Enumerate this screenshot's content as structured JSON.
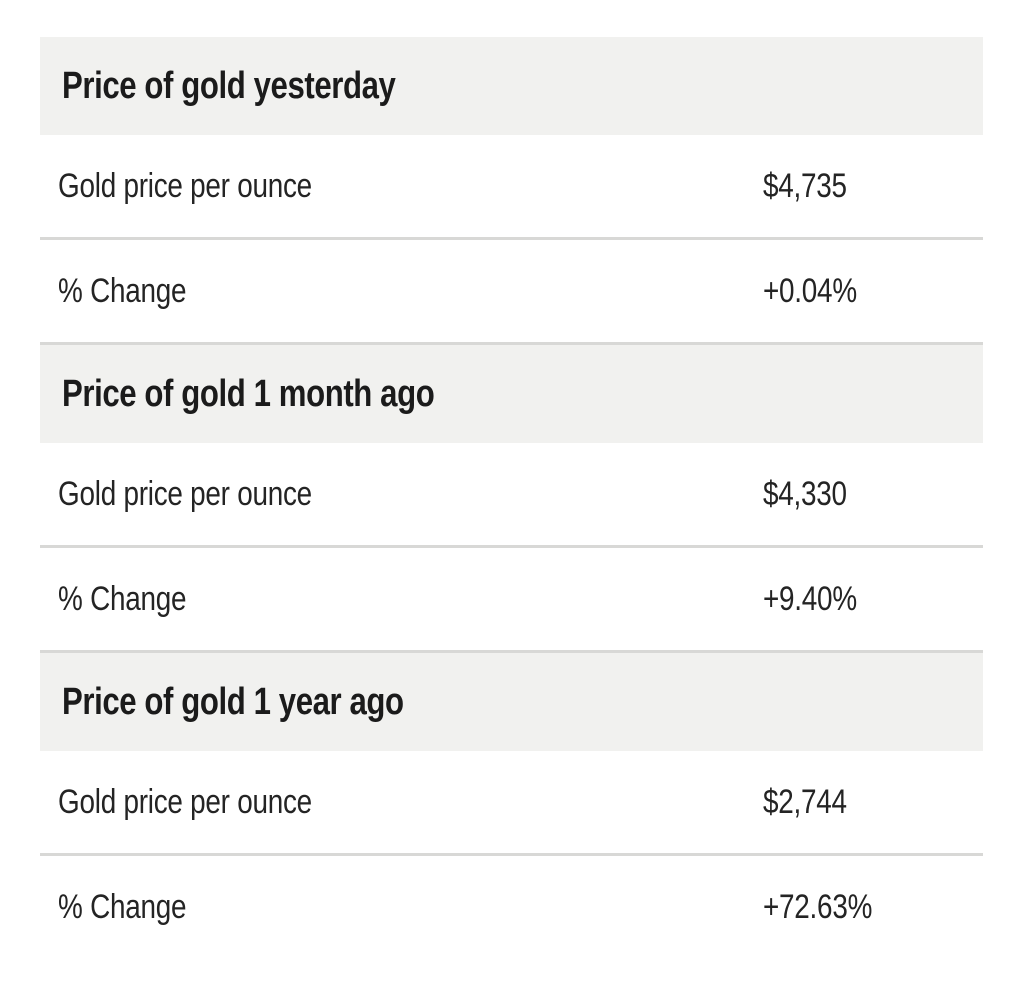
{
  "colors": {
    "page_background": "#ffffff",
    "header_background": "#f1f1ef",
    "divider": "#d8d8d6",
    "heading_text": "#1b1b1b",
    "row_text": "#242424"
  },
  "table": {
    "sections": [
      {
        "title": "Price of gold yesterday",
        "rows": [
          {
            "label": "Gold price per ounce",
            "value": "$4,735"
          },
          {
            "label": "% Change",
            "value": "+0.04%"
          }
        ]
      },
      {
        "title": "Price of gold 1 month ago",
        "rows": [
          {
            "label": "Gold price per ounce",
            "value": "$4,330"
          },
          {
            "label": "% Change",
            "value": "+9.40%"
          }
        ]
      },
      {
        "title": "Price of gold 1 year ago",
        "rows": [
          {
            "label": "Gold price per ounce",
            "value": "$2,744"
          },
          {
            "label": "% Change",
            "value": "+72.63%"
          }
        ]
      }
    ]
  }
}
